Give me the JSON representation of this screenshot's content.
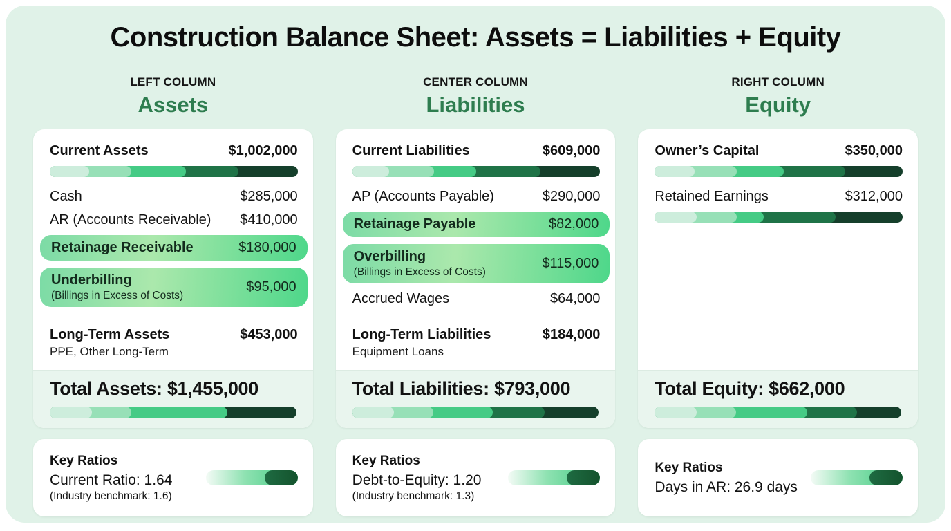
{
  "title": "Construction Balance Sheet: Assets = Liabilities + Equity",
  "colors": {
    "panel_bg": "#E0F2E8",
    "heading_green": "#2E7D4F",
    "total_bg": "#E9F5EE",
    "highlight_gradient": [
      "#7CDBA6",
      "#ABE8AC",
      "#4ED78A"
    ],
    "ratio_bar": {
      "gradient": [
        "#F4FBF6",
        "#8FE2B2",
        "#3FC981"
      ],
      "dark": [
        "#1E6B42",
        "#14532D"
      ],
      "dark_width": 36
    }
  },
  "bar_palette": {
    "l0": "#CDEDDC",
    "l1": "#97E0B7",
    "m": "#45CB85",
    "d": "#1F7347",
    "dd": "#153F2B"
  },
  "columns": [
    {
      "kicker": "LEFT COLUMN",
      "heading": "Assets",
      "rows": [
        {
          "type": "header",
          "label": "Current Assets",
          "value": "$1,002,000",
          "bar": [
            [
              "l0",
              16
            ],
            [
              "l1",
              33
            ],
            [
              "m",
              55
            ],
            [
              "d",
              76
            ],
            [
              "dd",
              100
            ]
          ]
        },
        {
          "type": "item",
          "label": "Cash",
          "value": "$285,000"
        },
        {
          "type": "item",
          "label": "AR (Accounts Receivable)",
          "value": "$410,000"
        },
        {
          "type": "highlight",
          "label": "Retainage Receivable",
          "value": "$180,000"
        },
        {
          "type": "highlight",
          "label": "Underbilling",
          "sub": "(Billings in Excess of Costs)",
          "value": "$95,000"
        },
        {
          "type": "divider"
        },
        {
          "type": "subheader",
          "label": "Long-Term Assets",
          "sub": "PPE, Other Long-Term",
          "value": "$453,000"
        }
      ],
      "total": {
        "label": "Total Assets: $1,455,000",
        "bar": [
          [
            "l0",
            17
          ],
          [
            "l1",
            33
          ],
          [
            "m",
            72
          ],
          [
            "dd",
            100
          ]
        ]
      },
      "ratios": {
        "title": "Key Ratios",
        "line": "Current Ratio: 1.64",
        "benchmark": "(Industry benchmark: 1.6)"
      }
    },
    {
      "kicker": "CENTER COLUMN",
      "heading": "Liabilities",
      "rows": [
        {
          "type": "header",
          "label": "Current Liabilities",
          "value": "$609,000",
          "bar": [
            [
              "l0",
              15
            ],
            [
              "l1",
              33
            ],
            [
              "m",
              50
            ],
            [
              "d",
              76
            ],
            [
              "dd",
              100
            ]
          ]
        },
        {
          "type": "item",
          "label": "AP (Accounts Payable)",
          "value": "$290,000"
        },
        {
          "type": "highlight",
          "label": "Retainage Payable",
          "value": "$82,000"
        },
        {
          "type": "highlight",
          "label": "Overbilling",
          "sub": "(Billings in Excess of Costs)",
          "value": "$115,000"
        },
        {
          "type": "item",
          "label": "Accrued Wages",
          "value": "$64,000"
        },
        {
          "type": "divider"
        },
        {
          "type": "subheader",
          "label": "Long-Term Liabilities",
          "sub": "Equipment Loans",
          "value": "$184,000"
        }
      ],
      "total": {
        "label": "Total Liabilities: $793,000",
        "bar": [
          [
            "l0",
            17
          ],
          [
            "l1",
            33
          ],
          [
            "m",
            57
          ],
          [
            "d",
            78
          ],
          [
            "dd",
            100
          ]
        ]
      },
      "ratios": {
        "title": "Key Ratios",
        "line": "Debt-to-Equity: 1.20",
        "benchmark": "(Industry benchmark: 1.3)"
      }
    },
    {
      "kicker": "RIGHT COLUMN",
      "heading": "Equity",
      "rows": [
        {
          "type": "header",
          "label": "Owner’s Capital",
          "value": "$350,000",
          "bar": [
            [
              "l0",
              16
            ],
            [
              "l1",
              33
            ],
            [
              "m",
              52
            ],
            [
              "d",
              77
            ],
            [
              "dd",
              100
            ]
          ]
        },
        {
          "type": "item",
          "label": "Retained Earnings",
          "value": "$312,000",
          "bar": [
            [
              "l0",
              17
            ],
            [
              "l1",
              33
            ],
            [
              "m",
              44
            ],
            [
              "d",
              73
            ],
            [
              "dd",
              100
            ]
          ]
        }
      ],
      "total": {
        "label": "Total Equity: $662,000",
        "bar": [
          [
            "l0",
            17
          ],
          [
            "l1",
            33
          ],
          [
            "m",
            62
          ],
          [
            "d",
            82
          ],
          [
            "dd",
            100
          ]
        ]
      },
      "ratios": {
        "title": "Key Ratios",
        "line": "Days in AR: 26.9 days"
      }
    }
  ]
}
